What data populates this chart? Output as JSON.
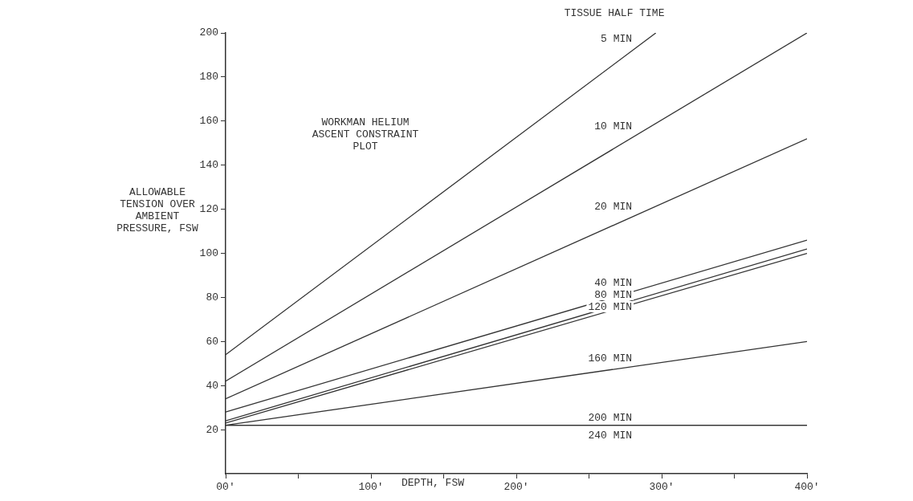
{
  "chart_data": {
    "type": "line",
    "title": "WORKMAN HELIUM ASCENT CONSTRAINT PLOT",
    "xlabel": "DEPTH, FSW",
    "ylabel": "ALLOWABLE TENSION OVER AMBIENT PRESSURE, FSW",
    "legend_title": "TISSUE HALF TIME",
    "xlim": [
      0,
      400
    ],
    "xticks": [
      {
        "value": 0,
        "label": "00'"
      },
      {
        "value": 50,
        "label": null
      },
      {
        "value": 100,
        "label": "100'"
      },
      {
        "value": 150,
        "label": null
      },
      {
        "value": 200,
        "label": "200'"
      },
      {
        "value": 250,
        "label": null
      },
      {
        "value": 300,
        "label": "300'"
      },
      {
        "value": 350,
        "label": null
      },
      {
        "value": 400,
        "label": "400'"
      }
    ],
    "ylim": [
      0,
      200
    ],
    "yticks": [
      20,
      40,
      60,
      80,
      100,
      120,
      140,
      160,
      180,
      200
    ],
    "grid": false,
    "legend": false,
    "marker": "none",
    "line_style": "solid",
    "series": [
      {
        "name": "5 MIN",
        "color": "#333333",
        "x": [
          0,
          296
        ],
        "values": [
          54,
          200
        ]
      },
      {
        "name": "10 MIN",
        "color": "#333333",
        "x": [
          0,
          400
        ],
        "values": [
          42,
          200
        ]
      },
      {
        "name": "20 MIN",
        "color": "#333333",
        "x": [
          0,
          400
        ],
        "values": [
          34,
          152
        ]
      },
      {
        "name": "40 MIN",
        "color": "#333333",
        "x": [
          0,
          400
        ],
        "values": [
          28,
          106
        ]
      },
      {
        "name": "80 MIN",
        "color": "#333333",
        "x": [
          0,
          400
        ],
        "values": [
          24,
          102
        ]
      },
      {
        "name": "120 MIN",
        "color": "#333333",
        "x": [
          0,
          400
        ],
        "values": [
          23,
          100
        ]
      },
      {
        "name": "160 MIN",
        "color": "#333333",
        "x": [
          0,
          400
        ],
        "values": [
          22,
          60
        ]
      },
      {
        "name": "200 MIN",
        "color": "#333333",
        "x": [
          0,
          400
        ],
        "values": [
          22,
          22
        ]
      },
      {
        "name": "240 MIN",
        "color": "#333333",
        "x": [
          0,
          400
        ],
        "values": [
          22,
          22
        ]
      }
    ]
  }
}
